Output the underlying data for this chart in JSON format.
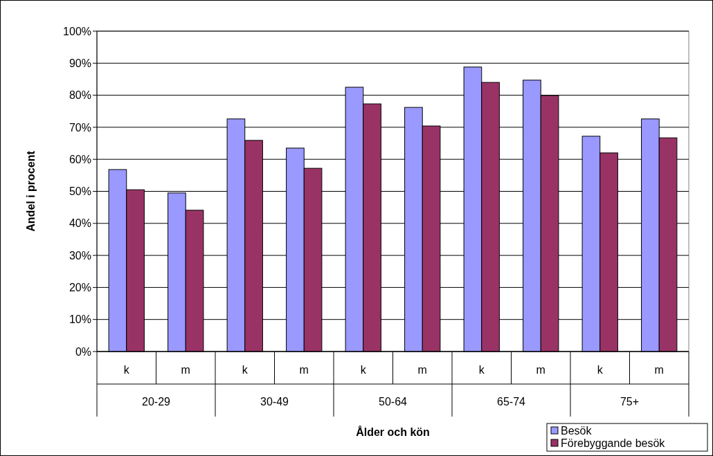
{
  "chart_data": {
    "type": "bar",
    "xlabel": "Ålder och kön",
    "ylabel": "Andel i procent",
    "categories": [
      "k",
      "m",
      "k",
      "m",
      "k",
      "m",
      "k",
      "m",
      "k",
      "m"
    ],
    "annotations": [
      "20-29",
      "30-49",
      "50-64",
      "65-74",
      "75+"
    ],
    "series": [
      {
        "name": "Besök",
        "color": "#9999ff",
        "values": [
          56.8,
          49.5,
          72.6,
          63.5,
          82.5,
          76.2,
          88.8,
          84.7,
          67.2,
          72.6
        ]
      },
      {
        "name": "Förebyggande besök",
        "color": "#993366",
        "values": [
          50.5,
          44.1,
          65.9,
          57.2,
          77.3,
          70.4,
          84,
          79.9,
          62,
          66.7
        ]
      }
    ],
    "ylim": [
      0,
      100
    ],
    "yticks": [
      {
        "value": 0,
        "label": "0%"
      },
      {
        "value": 10,
        "label": "10%"
      },
      {
        "value": 20,
        "label": "20%"
      },
      {
        "value": 30,
        "label": "30%"
      },
      {
        "value": 40,
        "label": "40%"
      },
      {
        "value": 50,
        "label": "50%"
      },
      {
        "value": 60,
        "label": "60%"
      },
      {
        "value": 70,
        "label": "70%"
      },
      {
        "value": 80,
        "label": "80%"
      },
      {
        "value": 90,
        "label": "90%"
      },
      {
        "value": 100,
        "label": "100%"
      }
    ],
    "grid": "y",
    "legend": "bottom right"
  }
}
